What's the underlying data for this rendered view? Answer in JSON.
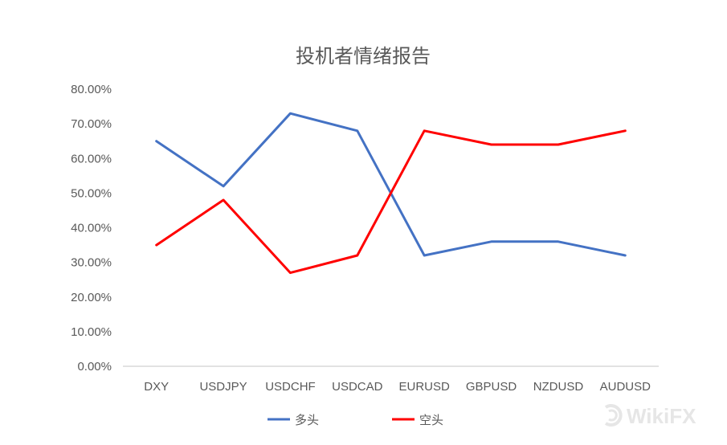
{
  "chart_data": {
    "type": "line",
    "title": "投机者情绪报告",
    "categories": [
      "DXY",
      "USDJPY",
      "USDCHF",
      "USDCAD",
      "EURUSD",
      "GBPUSD",
      "NZDUSD",
      "AUDUSD"
    ],
    "series": [
      {
        "name": "多头",
        "color": "#4472c4",
        "values": [
          65,
          52,
          73,
          68,
          32,
          36,
          36,
          32
        ]
      },
      {
        "name": "空头",
        "color": "#ff0000",
        "values": [
          35,
          48,
          27,
          32,
          68,
          64,
          64,
          68
        ]
      }
    ],
    "y_ticks": [
      "0.00%",
      "10.00%",
      "20.00%",
      "30.00%",
      "40.00%",
      "50.00%",
      "60.00%",
      "70.00%",
      "80.00%"
    ],
    "ylim": [
      0,
      80
    ],
    "y_unit": "%",
    "grid": false,
    "legend_position": "bottom"
  },
  "watermark": {
    "text": "WikiFX",
    "icon": "wikifx-logo-icon"
  },
  "colors": {
    "axis": "#d9d9d9",
    "text": "#595959"
  }
}
